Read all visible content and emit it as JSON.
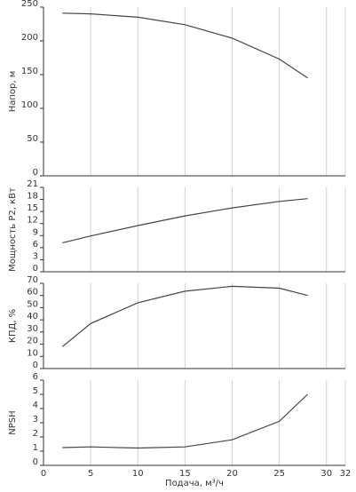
{
  "chart_data": [
    {
      "type": "line",
      "ylabel": "Напор, м",
      "color": "#444444",
      "x": [
        2,
        5,
        10,
        15,
        20,
        25,
        28
      ],
      "values": [
        241,
        240,
        235,
        224,
        204,
        173,
        145
      ],
      "xlim": [
        0,
        32
      ],
      "xticks": [
        0,
        5,
        10,
        15,
        20,
        25,
        30,
        32
      ],
      "ylim": [
        0,
        250
      ],
      "yticks": [
        0,
        50,
        100,
        150,
        200,
        250
      ],
      "grid": true
    },
    {
      "type": "line",
      "ylabel": "Мощность P2, кВт",
      "color": "#444444",
      "x": [
        2,
        5,
        10,
        15,
        20,
        25,
        28
      ],
      "values": [
        7.2,
        8.9,
        11.5,
        13.9,
        15.9,
        17.5,
        18.2
      ],
      "xlim": [
        0,
        32
      ],
      "xticks": [
        0,
        5,
        10,
        15,
        20,
        25,
        30,
        32
      ],
      "ylim": [
        0,
        21
      ],
      "yticks": [
        0,
        3,
        6,
        9,
        12,
        15,
        18,
        21
      ],
      "grid": true
    },
    {
      "type": "line",
      "ylabel": "КПД, %",
      "color": "#444444",
      "x": [
        2,
        5,
        10,
        15,
        20,
        25,
        28
      ],
      "values": [
        18,
        37,
        54,
        63.5,
        67.5,
        66,
        60
      ],
      "xlim": [
        0,
        32
      ],
      "xticks": [
        0,
        5,
        10,
        15,
        20,
        25,
        30,
        32
      ],
      "ylim": [
        0,
        70
      ],
      "yticks": [
        0,
        10,
        20,
        30,
        40,
        50,
        60,
        70
      ],
      "grid": true
    },
    {
      "type": "line",
      "ylabel": "NPSH",
      "xlabel": "Подача, м³/ч",
      "color": "#444444",
      "x": [
        2,
        5,
        10,
        15,
        20,
        25,
        28
      ],
      "values": [
        1.25,
        1.3,
        1.22,
        1.3,
        1.8,
        3.1,
        5.0
      ],
      "xlim": [
        0,
        32
      ],
      "xticks": [
        0,
        5,
        10,
        15,
        20,
        25,
        30,
        32
      ],
      "ylim": [
        0,
        6
      ],
      "yticks": [
        0,
        1,
        2,
        3,
        4,
        5,
        6
      ],
      "grid": true
    }
  ]
}
